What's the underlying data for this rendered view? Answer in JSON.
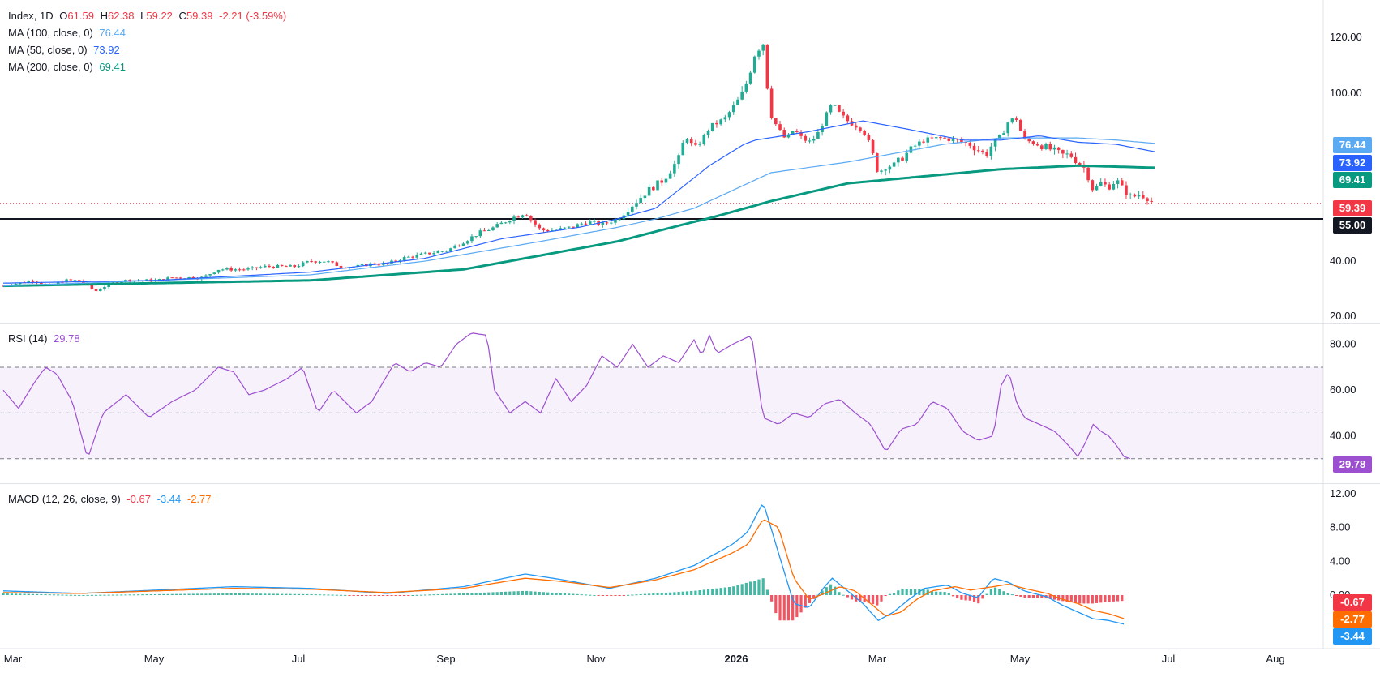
{
  "legend": {
    "main": {
      "name": "Index, 1D",
      "o_label": "O",
      "o": "61.59",
      "h_label": "H",
      "h": "62.38",
      "l_label": "L",
      "l": "59.22",
      "c_label": "C",
      "c": "59.39",
      "change": "-2.21 (-3.59%)"
    },
    "ma100": {
      "label": "MA (100, close, 0)",
      "value": "76.44"
    },
    "ma50": {
      "label": "MA (50, close, 0)",
      "value": "73.92"
    },
    "ma200": {
      "label": "MA (200, close, 0)",
      "value": "69.41"
    },
    "rsi": {
      "label": "RSI (14)",
      "value": "29.78"
    },
    "macd": {
      "label": "MACD (12, 26, close, 9)",
      "v1": "-0.67",
      "v2": "-3.44",
      "v3": "-2.77"
    }
  },
  "price_axis": [
    "120.00",
    "100.00",
    "40.00",
    "20.00"
  ],
  "rsi_axis": [
    "80.00",
    "60.00",
    "40.00"
  ],
  "macd_axis": [
    "12.00",
    "8.00",
    "4.00",
    "0.00"
  ],
  "time_axis": [
    "Mar",
    "May",
    "Jul",
    "Sep",
    "Nov",
    "2026",
    "Mar",
    "May",
    "Jul",
    "Aug"
  ],
  "price_tags": {
    "ma100": "76.44",
    "ma50": "73.92",
    "ma200": "69.41",
    "close": "59.39",
    "level": "55.00"
  },
  "rsi_tag": "29.78",
  "macd_tags": {
    "hist": "-0.67",
    "signal": "-2.77",
    "macd": "-3.44"
  },
  "colors": {
    "up": "#22ab94",
    "down": "#f23645",
    "ma100": "#5aa9f3",
    "ma50": "#2962ff",
    "ma200": "#089981",
    "rsi": "#9c4fcf",
    "macd": "#2196f3",
    "signal": "#ff6d00"
  },
  "chart_data": {
    "type": "candlestick",
    "title": "Index, 1D",
    "price_range": [
      20,
      122
    ],
    "horizontal_level": 55.0,
    "price_path": [
      [
        0,
        31
      ],
      [
        40,
        33
      ],
      [
        60,
        31
      ],
      [
        80,
        33
      ],
      [
        100,
        33
      ],
      [
        120,
        29
      ],
      [
        140,
        32
      ],
      [
        160,
        33
      ],
      [
        180,
        33
      ],
      [
        200,
        33
      ],
      [
        220,
        34
      ],
      [
        240,
        34
      ],
      [
        260,
        34
      ],
      [
        280,
        37
      ],
      [
        300,
        37
      ],
      [
        320,
        37
      ],
      [
        340,
        38
      ],
      [
        360,
        38
      ],
      [
        380,
        38
      ],
      [
        400,
        40
      ],
      [
        420,
        40
      ],
      [
        440,
        38
      ],
      [
        460,
        38
      ],
      [
        480,
        39
      ],
      [
        500,
        39
      ],
      [
        520,
        41
      ],
      [
        540,
        42
      ],
      [
        560,
        43
      ],
      [
        580,
        44
      ],
      [
        600,
        47
      ],
      [
        620,
        50
      ],
      [
        640,
        52
      ],
      [
        660,
        55
      ],
      [
        680,
        57
      ],
      [
        700,
        51
      ],
      [
        720,
        51
      ],
      [
        740,
        52
      ],
      [
        760,
        54
      ],
      [
        780,
        53
      ],
      [
        800,
        55
      ],
      [
        820,
        59
      ],
      [
        840,
        63
      ],
      [
        860,
        66
      ],
      [
        880,
        72
      ],
      [
        890,
        80
      ],
      [
        900,
        74
      ],
      [
        910,
        78
      ],
      [
        920,
        84
      ],
      [
        940,
        88
      ],
      [
        960,
        98
      ],
      [
        970,
        105
      ],
      [
        980,
        115
      ],
      [
        990,
        118
      ],
      [
        1000,
        90
      ],
      [
        1010,
        83
      ],
      [
        1020,
        78
      ],
      [
        1030,
        83
      ],
      [
        1040,
        79
      ],
      [
        1050,
        77
      ],
      [
        1060,
        80
      ],
      [
        1070,
        88
      ],
      [
        1080,
        95
      ],
      [
        1090,
        90
      ],
      [
        1100,
        87
      ],
      [
        1110,
        85
      ],
      [
        1120,
        83
      ],
      [
        1130,
        75
      ],
      [
        1140,
        68
      ],
      [
        1150,
        70
      ],
      [
        1160,
        70
      ],
      [
        1180,
        74
      ],
      [
        1200,
        78
      ],
      [
        1220,
        79
      ],
      [
        1240,
        78
      ],
      [
        1260,
        76
      ],
      [
        1280,
        73
      ],
      [
        1300,
        80
      ],
      [
        1310,
        87
      ],
      [
        1320,
        88
      ],
      [
        1330,
        78
      ],
      [
        1340,
        77
      ],
      [
        1360,
        75
      ],
      [
        1380,
        73
      ],
      [
        1390,
        73
      ],
      [
        1400,
        71
      ],
      [
        1410,
        69
      ],
      [
        1420,
        63
      ],
      [
        1430,
        65
      ],
      [
        1440,
        64
      ],
      [
        1450,
        66
      ],
      [
        1460,
        63
      ],
      [
        1470,
        61
      ],
      [
        1480,
        62
      ],
      [
        1490,
        61
      ],
      [
        1500,
        59.39
      ]
    ],
    "ma200_path": [
      [
        0,
        31
      ],
      [
        200,
        32
      ],
      [
        400,
        33
      ],
      [
        600,
        37
      ],
      [
        700,
        42
      ],
      [
        800,
        47
      ],
      [
        900,
        54
      ],
      [
        1000,
        60
      ],
      [
        1100,
        65
      ],
      [
        1200,
        67
      ],
      [
        1300,
        69
      ],
      [
        1400,
        70
      ],
      [
        1500,
        69.41
      ]
    ],
    "ma100_path": [
      [
        0,
        31
      ],
      [
        200,
        33
      ],
      [
        400,
        35
      ],
      [
        550,
        40
      ],
      [
        700,
        47
      ],
      [
        800,
        52
      ],
      [
        900,
        58
      ],
      [
        950,
        63
      ],
      [
        1000,
        68
      ],
      [
        1100,
        71
      ],
      [
        1200,
        75
      ],
      [
        1300,
        79
      ],
      [
        1400,
        79
      ],
      [
        1450,
        78
      ],
      [
        1500,
        76.44
      ]
    ],
    "ma50_path": [
      [
        0,
        32
      ],
      [
        200,
        33
      ],
      [
        400,
        36
      ],
      [
        550,
        41
      ],
      [
        650,
        48
      ],
      [
        750,
        52
      ],
      [
        850,
        58
      ],
      [
        920,
        70
      ],
      [
        980,
        78
      ],
      [
        1050,
        82
      ],
      [
        1120,
        87
      ],
      [
        1180,
        83
      ],
      [
        1250,
        78
      ],
      [
        1300,
        78
      ],
      [
        1350,
        80
      ],
      [
        1400,
        77
      ],
      [
        1450,
        76
      ],
      [
        1500,
        73.92
      ]
    ],
    "rsi_range": [
      20,
      90
    ],
    "rsi_levels": [
      70,
      50,
      30
    ],
    "rsi_path": [
      [
        0,
        60
      ],
      [
        20,
        52
      ],
      [
        40,
        63
      ],
      [
        55,
        70
      ],
      [
        70,
        67
      ],
      [
        90,
        55
      ],
      [
        110,
        30
      ],
      [
        130,
        50
      ],
      [
        160,
        58
      ],
      [
        190,
        48
      ],
      [
        220,
        55
      ],
      [
        250,
        60
      ],
      [
        280,
        70
      ],
      [
        300,
        68
      ],
      [
        320,
        58
      ],
      [
        340,
        60
      ],
      [
        370,
        65
      ],
      [
        390,
        70
      ],
      [
        410,
        50
      ],
      [
        430,
        60
      ],
      [
        460,
        50
      ],
      [
        480,
        55
      ],
      [
        510,
        72
      ],
      [
        530,
        68
      ],
      [
        550,
        72
      ],
      [
        570,
        70
      ],
      [
        590,
        80
      ],
      [
        610,
        85
      ],
      [
        630,
        84
      ],
      [
        640,
        60
      ],
      [
        660,
        50
      ],
      [
        680,
        55
      ],
      [
        700,
        50
      ],
      [
        720,
        65
      ],
      [
        740,
        55
      ],
      [
        760,
        62
      ],
      [
        780,
        75
      ],
      [
        800,
        70
      ],
      [
        820,
        80
      ],
      [
        840,
        70
      ],
      [
        860,
        75
      ],
      [
        880,
        72
      ],
      [
        900,
        82
      ],
      [
        910,
        75
      ],
      [
        920,
        84
      ],
      [
        930,
        76
      ],
      [
        950,
        80
      ],
      [
        975,
        84
      ],
      [
        990,
        48
      ],
      [
        1010,
        45
      ],
      [
        1030,
        50
      ],
      [
        1050,
        48
      ],
      [
        1070,
        54
      ],
      [
        1090,
        56
      ],
      [
        1110,
        50
      ],
      [
        1130,
        45
      ],
      [
        1150,
        33
      ],
      [
        1170,
        43
      ],
      [
        1190,
        45
      ],
      [
        1210,
        55
      ],
      [
        1230,
        52
      ],
      [
        1250,
        42
      ],
      [
        1270,
        38
      ],
      [
        1290,
        40
      ],
      [
        1300,
        62
      ],
      [
        1310,
        68
      ],
      [
        1320,
        55
      ],
      [
        1330,
        48
      ],
      [
        1350,
        45
      ],
      [
        1370,
        42
      ],
      [
        1390,
        35
      ],
      [
        1400,
        31
      ],
      [
        1410,
        37
      ],
      [
        1420,
        45
      ],
      [
        1430,
        42
      ],
      [
        1440,
        40
      ],
      [
        1450,
        36
      ],
      [
        1460,
        31
      ],
      [
        1470,
        29.78
      ]
    ],
    "macd_range": [
      -4.5,
      12.5
    ],
    "macd_path": [
      [
        0,
        0.5
      ],
      [
        100,
        0.2
      ],
      [
        200,
        0.6
      ],
      [
        300,
        1.0
      ],
      [
        400,
        0.8
      ],
      [
        500,
        0.2
      ],
      [
        600,
        1.0
      ],
      [
        680,
        2.5
      ],
      [
        730,
        1.8
      ],
      [
        790,
        0.8
      ],
      [
        850,
        2.0
      ],
      [
        900,
        3.5
      ],
      [
        950,
        6.0
      ],
      [
        970,
        7.5
      ],
      [
        990,
        11.0
      ],
      [
        1000,
        8.0
      ],
      [
        1010,
        5.0
      ],
      [
        1030,
        -1.0
      ],
      [
        1050,
        -1.5
      ],
      [
        1070,
        1.0
      ],
      [
        1080,
        2.0
      ],
      [
        1100,
        0.5
      ],
      [
        1120,
        -1.0
      ],
      [
        1140,
        -3.0
      ],
      [
        1160,
        -2.0
      ],
      [
        1180,
        -0.5
      ],
      [
        1200,
        0.8
      ],
      [
        1230,
        1.2
      ],
      [
        1250,
        0.2
      ],
      [
        1270,
        -0.3
      ],
      [
        1290,
        2.0
      ],
      [
        1310,
        1.5
      ],
      [
        1330,
        0.5
      ],
      [
        1360,
        -0.2
      ],
      [
        1380,
        -1.2
      ],
      [
        1400,
        -2.0
      ],
      [
        1420,
        -2.8
      ],
      [
        1440,
        -3.0
      ],
      [
        1460,
        -3.44
      ]
    ],
    "signal_path": [
      [
        0,
        0.3
      ],
      [
        100,
        0.2
      ],
      [
        200,
        0.5
      ],
      [
        300,
        0.8
      ],
      [
        400,
        0.7
      ],
      [
        500,
        0.3
      ],
      [
        600,
        0.8
      ],
      [
        680,
        2.0
      ],
      [
        730,
        1.6
      ],
      [
        790,
        0.9
      ],
      [
        850,
        1.8
      ],
      [
        900,
        3.0
      ],
      [
        950,
        5.0
      ],
      [
        970,
        6.0
      ],
      [
        990,
        9.0
      ],
      [
        1010,
        8.0
      ],
      [
        1030,
        2.0
      ],
      [
        1050,
        -0.5
      ],
      [
        1070,
        0.2
      ],
      [
        1090,
        1.0
      ],
      [
        1110,
        0.5
      ],
      [
        1130,
        -1.0
      ],
      [
        1150,
        -2.5
      ],
      [
        1170,
        -2.0
      ],
      [
        1190,
        -0.5
      ],
      [
        1210,
        0.5
      ],
      [
        1240,
        1.0
      ],
      [
        1260,
        0.6
      ],
      [
        1290,
        1.0
      ],
      [
        1310,
        1.3
      ],
      [
        1330,
        0.8
      ],
      [
        1360,
        0.2
      ],
      [
        1380,
        -0.5
      ],
      [
        1400,
        -1.0
      ],
      [
        1420,
        -1.8
      ],
      [
        1440,
        -2.2
      ],
      [
        1460,
        -2.77
      ]
    ]
  }
}
